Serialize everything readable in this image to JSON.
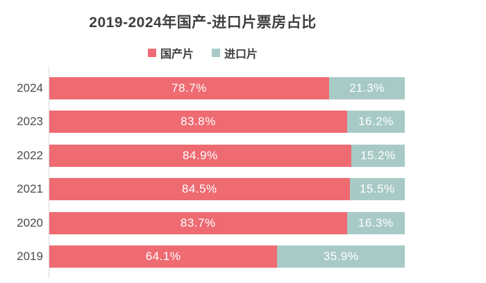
{
  "title": "2019-2024年国产-进口片票房占比",
  "legend": {
    "items": [
      {
        "label": "国产片",
        "color": "#ee6b72"
      },
      {
        "label": "进口片",
        "color": "#a8cac7"
      }
    ]
  },
  "colors": {
    "background": "#ffffff",
    "domestic": "#ee6b72",
    "imported": "#a8cac7",
    "axis": "#dadada",
    "title_text": "#3e3e3e",
    "year_text": "#4a4a4a",
    "bar_label_text": "#ffffff"
  },
  "chart_data": {
    "type": "bar",
    "orientation": "horizontal",
    "stacked": true,
    "title": "2019-2024年国产-进口片票房占比",
    "xlabel": "",
    "ylabel": "",
    "xlim": [
      0,
      100
    ],
    "grid": false,
    "legend_position": "top",
    "categories": [
      "2024",
      "2023",
      "2022",
      "2021",
      "2020",
      "2019"
    ],
    "series": [
      {
        "name": "国产片",
        "color": "#ee6b72",
        "values": [
          78.7,
          83.8,
          84.9,
          84.5,
          83.7,
          64.1
        ],
        "labels": [
          "78.7%",
          "83.8%",
          "84.9%",
          "84.5%",
          "83.7%",
          "64.1%"
        ]
      },
      {
        "name": "进口片",
        "color": "#a8cac7",
        "values": [
          21.3,
          16.2,
          15.2,
          15.5,
          16.3,
          35.9
        ],
        "labels": [
          "21.3%",
          "16.2%",
          "15.2%",
          "15.5%",
          "16.3%",
          "35.9%"
        ]
      }
    ]
  }
}
